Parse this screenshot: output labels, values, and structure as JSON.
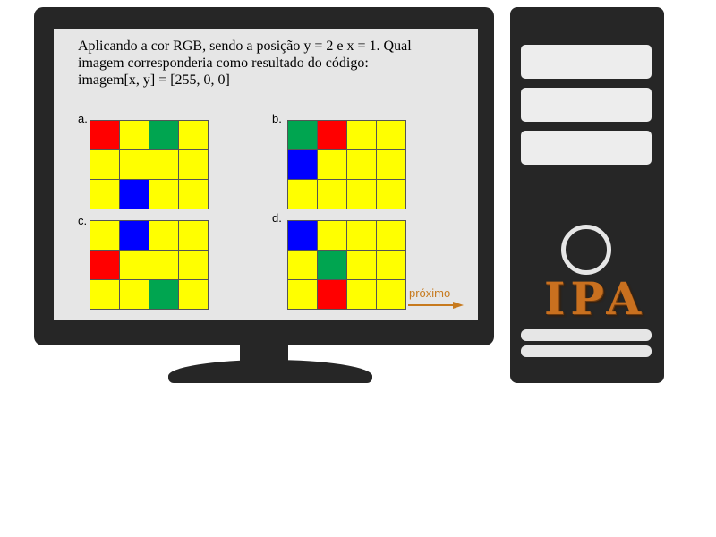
{
  "question": {
    "line1": "Aplicando a cor RGB, sendo a posição y = 2  e  x = 1. Qual",
    "line2": "imagem corresponderia como resultado do código:",
    "line3": "imagem[x, y] = [255, 0, 0]"
  },
  "options": [
    {
      "label": "a.",
      "cells": [
        "red",
        "yellow",
        "green",
        "yellow",
        "yellow",
        "yellow",
        "yellow",
        "yellow",
        "yellow",
        "blue",
        "yellow",
        "yellow"
      ]
    },
    {
      "label": "b.",
      "cells": [
        "green",
        "red",
        "yellow",
        "yellow",
        "blue",
        "yellow",
        "yellow",
        "yellow",
        "yellow",
        "yellow",
        "yellow",
        "yellow"
      ]
    },
    {
      "label": "c.",
      "cells": [
        "yellow",
        "blue",
        "yellow",
        "yellow",
        "red",
        "yellow",
        "yellow",
        "yellow",
        "yellow",
        "yellow",
        "green",
        "yellow"
      ]
    },
    {
      "label": "d.",
      "cells": [
        "blue",
        "yellow",
        "yellow",
        "yellow",
        "yellow",
        "green",
        "yellow",
        "yellow",
        "yellow",
        "red",
        "yellow",
        "yellow"
      ]
    }
  ],
  "next": {
    "label": "próximo"
  },
  "logo": {
    "text": "IPA"
  },
  "colors": {
    "red": "#ff0000",
    "yellow": "#ffff00",
    "green": "#00a550",
    "blue": "#0000ff",
    "accent": "#c77a1e"
  }
}
